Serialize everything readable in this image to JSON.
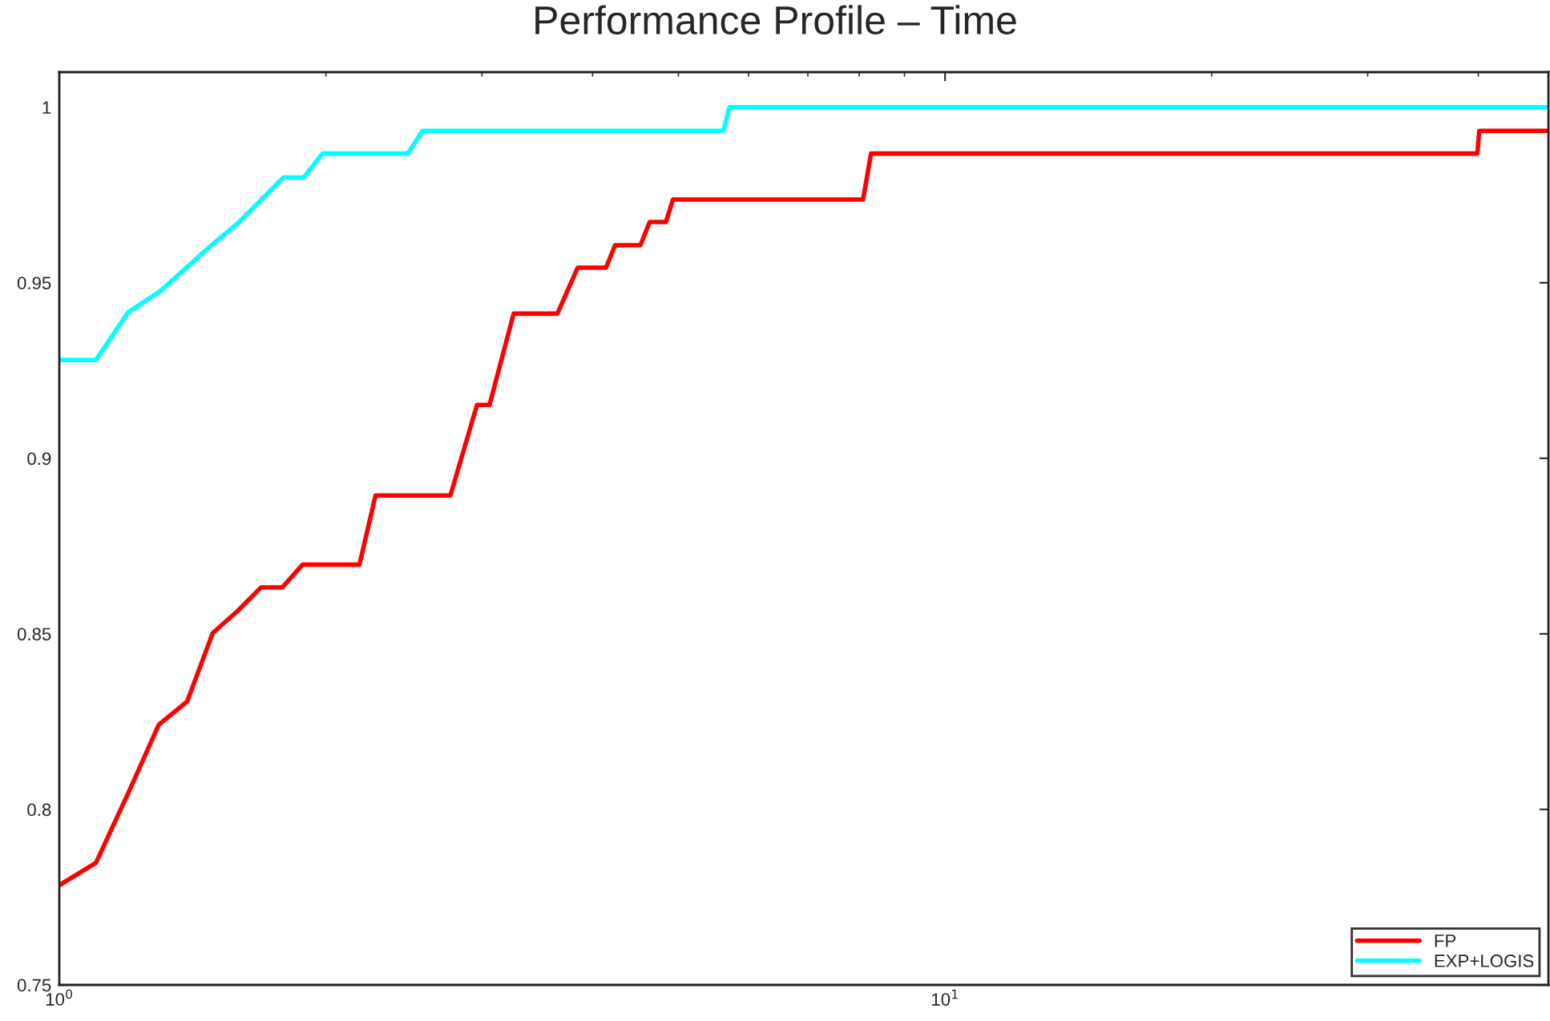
{
  "chart_data": {
    "type": "line",
    "title": "Performance Profile – Time",
    "log": "x",
    "xlim": [
      1,
      48
    ],
    "xticks": [
      {
        "value": 1,
        "label": "10$^{0}$"
      },
      {
        "value": 10,
        "label": "10$^{1}$"
      }
    ],
    "ylim": [
      0.75,
      1.01
    ],
    "yticks": [
      0.75,
      0.8,
      0.85,
      0.9,
      0.95,
      1
    ],
    "grid": false,
    "legend": "bottom right",
    "line_style": "solid",
    "marker": "none",
    "series": [
      {
        "name": "FP",
        "color": "#ff0000",
        "x": [
          1.0,
          1.1,
          1.196,
          1.295,
          1.394,
          1.49,
          1.591,
          1.689,
          1.785,
          1.882,
          2.182,
          2.275,
          2.764,
          2.962,
          3.06,
          3.258,
          3.65,
          3.848,
          4.143,
          4.241,
          4.53,
          4.64,
          4.84,
          4.93,
          8.08,
          8.25,
          39.9,
          40.1,
          48
        ],
        "values": [
          0.7784,
          0.7848,
          0.8046,
          0.8241,
          0.8307,
          0.8502,
          0.8566,
          0.8632,
          0.8632,
          0.8697,
          0.8697,
          0.8894,
          0.8894,
          0.9152,
          0.9152,
          0.9412,
          0.9412,
          0.9543,
          0.9543,
          0.9607,
          0.9607,
          0.9673,
          0.9673,
          0.9737,
          0.9737,
          0.9868,
          0.9868,
          0.9933,
          0.9933
        ]
      },
      {
        "name": "EXP+LOGIS",
        "color": "#00ffff",
        "x": [
          1.0,
          1.1,
          1.196,
          1.3,
          1.484,
          1.591,
          1.791,
          1.888,
          1.982,
          2.474,
          2.571,
          5.62,
          5.71,
          48
        ],
        "values": [
          0.928,
          0.928,
          0.9416,
          0.9476,
          0.9606,
          0.967,
          0.98,
          0.98,
          0.9868,
          0.9868,
          0.9933,
          0.9933,
          1.0,
          1.0
        ]
      }
    ]
  }
}
